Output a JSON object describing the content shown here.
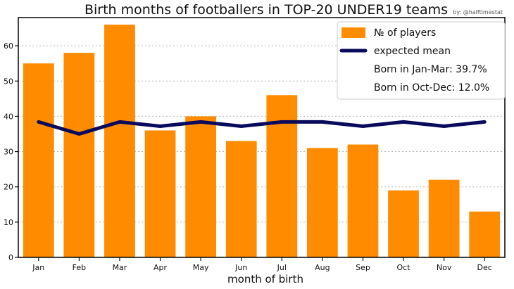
{
  "chart_data": {
    "type": "bar",
    "title": "Birth months of footballers in TOP-20 UNDER19 teams",
    "credit": "by: @halftimestat",
    "xlabel": "month of birth",
    "ylabel": "",
    "categories": [
      "Jan",
      "Feb",
      "Mar",
      "Apr",
      "May",
      "Jun",
      "Jul",
      "Aug",
      "Sep",
      "Oct",
      "Nov",
      "Dec"
    ],
    "ylim": [
      0,
      68
    ],
    "yticks": [
      0,
      10,
      20,
      30,
      40,
      50,
      60
    ],
    "grid": "horizontal dashed",
    "legend_position": "top-right",
    "series": [
      {
        "name": "№ of players",
        "type": "bar",
        "color": "#ff8c00",
        "values": [
          55,
          58,
          66,
          36,
          40,
          33,
          46,
          31,
          32,
          19,
          22,
          13
        ]
      },
      {
        "name": "expected mean",
        "type": "line",
        "color": "#0a0a5c",
        "values": [
          38.4,
          35.0,
          38.4,
          37.2,
          38.4,
          37.2,
          38.4,
          38.4,
          37.2,
          38.4,
          37.2,
          38.4
        ]
      }
    ],
    "annotations": [
      "Born in Jan-Mar: 39.7%",
      "Born in Oct-Dec: 12.0%"
    ]
  }
}
